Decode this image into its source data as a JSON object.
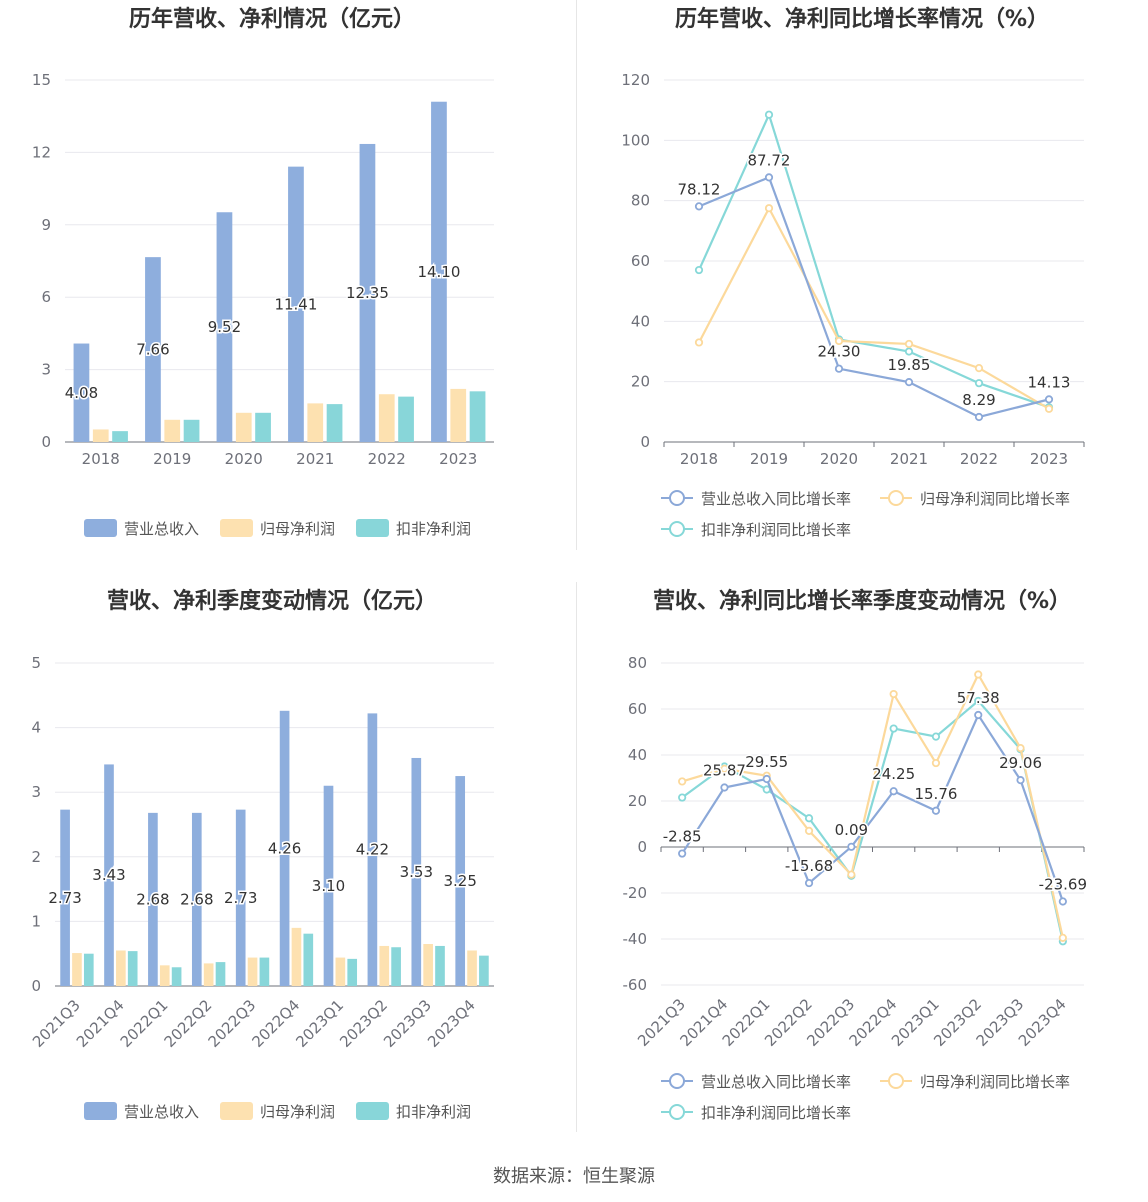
{
  "colors": {
    "revenue": "#8eaedd",
    "parent_net_profit": "#fde1b0",
    "non_gaap_net_profit": "#88d6d9",
    "grid": "#e8e8ee",
    "axis": "#6e7079"
  },
  "source_label": "数据来源：恒生聚源",
  "chart_data": [
    {
      "type": "bar",
      "title": "历年营收、净利情况（亿元）",
      "categories": [
        "2018",
        "2019",
        "2020",
        "2021",
        "2022",
        "2023"
      ],
      "ylim": [
        0,
        15
      ],
      "yticks": [
        0,
        3,
        6,
        9,
        12,
        15
      ],
      "grid": true,
      "legend_position": "bottom",
      "series": [
        {
          "name": "营业总收入",
          "values": [
            4.08,
            7.66,
            9.52,
            11.41,
            12.35,
            14.1
          ],
          "labels": [
            "4.08",
            "7.66",
            "9.52",
            "11.41",
            "12.35",
            "14.10"
          ]
        },
        {
          "name": "归母净利润",
          "values": [
            0.52,
            0.92,
            1.21,
            1.6,
            1.98,
            2.2
          ]
        },
        {
          "name": "扣非净利润",
          "values": [
            0.45,
            0.92,
            1.21,
            1.57,
            1.88,
            2.1
          ]
        }
      ]
    },
    {
      "type": "line",
      "title": "历年营收、净利同比增长率情况（%）",
      "categories": [
        "2018",
        "2019",
        "2020",
        "2021",
        "2022",
        "2023"
      ],
      "ylim": [
        0,
        120
      ],
      "yticks": [
        0,
        20,
        40,
        60,
        80,
        100,
        120
      ],
      "grid": true,
      "legend_position": "bottom",
      "series": [
        {
          "name": "营业总收入同比增长率",
          "values": [
            78.12,
            87.72,
            24.3,
            19.85,
            8.29,
            14.13
          ],
          "labels": [
            "78.12",
            "87.72",
            "24.30",
            "19.85",
            "8.29",
            "14.13"
          ]
        },
        {
          "name": "归母净利润同比增长率",
          "values": [
            33,
            77.5,
            33.5,
            32.5,
            24.5,
            11
          ]
        },
        {
          "name": "扣非净利润同比增长率",
          "values": [
            57,
            108.5,
            34,
            30,
            19.5,
            11.5
          ]
        }
      ]
    },
    {
      "type": "bar",
      "title": "营收、净利季度变动情况（亿元）",
      "categories": [
        "2021Q3",
        "2021Q4",
        "2022Q1",
        "2022Q2",
        "2022Q3",
        "2022Q4",
        "2023Q1",
        "2023Q2",
        "2023Q3",
        "2023Q4"
      ],
      "ylim": [
        0,
        5
      ],
      "yticks": [
        0,
        1,
        2,
        3,
        4,
        5
      ],
      "grid": true,
      "legend_position": "bottom",
      "series": [
        {
          "name": "营业总收入",
          "values": [
            2.73,
            3.43,
            2.68,
            2.68,
            2.73,
            4.26,
            3.1,
            4.22,
            3.53,
            3.25
          ],
          "labels": [
            "2.73",
            "3.43",
            "2.68",
            "2.68",
            "2.73",
            "4.26",
            "3.10",
            "4.22",
            "3.53",
            "3.25"
          ]
        },
        {
          "name": "归母净利润",
          "values": [
            0.51,
            0.55,
            0.32,
            0.35,
            0.44,
            0.9,
            0.44,
            0.62,
            0.65,
            0.55
          ]
        },
        {
          "name": "扣非净利润",
          "values": [
            0.5,
            0.54,
            0.29,
            0.37,
            0.44,
            0.81,
            0.42,
            0.6,
            0.62,
            0.47
          ]
        }
      ]
    },
    {
      "type": "line",
      "title": "营收、净利同比增长率季度变动情况（%）",
      "categories": [
        "2021Q3",
        "2021Q4",
        "2022Q1",
        "2022Q2",
        "2022Q3",
        "2022Q4",
        "2023Q1",
        "2023Q2",
        "2023Q3",
        "2023Q4"
      ],
      "ylim": [
        -60,
        80
      ],
      "yticks": [
        -60,
        -40,
        -20,
        0,
        20,
        40,
        60,
        80
      ],
      "grid": true,
      "legend_position": "bottom",
      "series": [
        {
          "name": "营业总收入同比增长率",
          "values": [
            -2.85,
            25.87,
            29.55,
            -15.68,
            0.09,
            24.25,
            15.76,
            57.38,
            29.06,
            -23.69
          ],
          "labels": [
            "-2.85",
            "25.87",
            "29.55",
            "-15.68",
            "0.09",
            "24.25",
            "15.76",
            "57.38",
            "29.06",
            "-23.69"
          ]
        },
        {
          "name": "归母净利润同比增长率",
          "values": [
            28.5,
            34,
            31,
            7,
            -12,
            66.5,
            36.5,
            75,
            43,
            -39.5
          ]
        },
        {
          "name": "扣非净利润同比增长率",
          "values": [
            21.5,
            35,
            25,
            12.5,
            -12.5,
            51.5,
            48,
            63.5,
            42.5,
            -41
          ]
        }
      ]
    }
  ]
}
